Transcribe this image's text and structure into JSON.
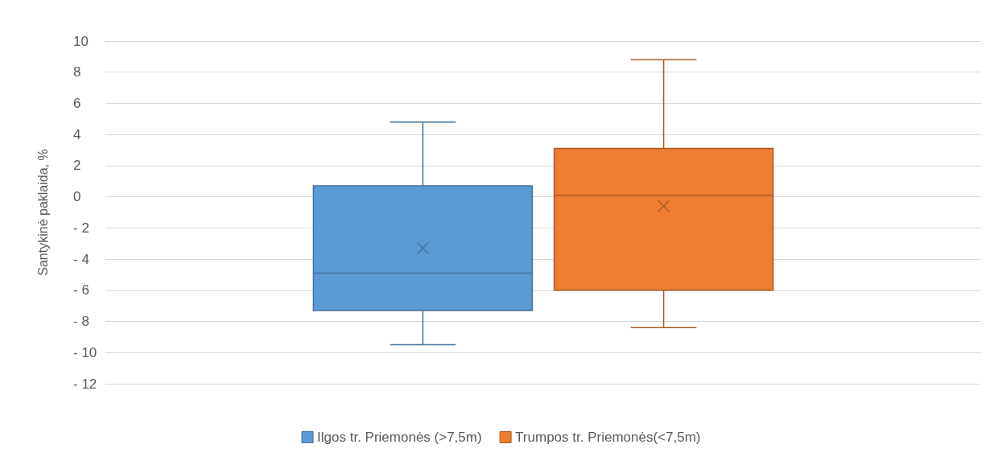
{
  "chart_data": {
    "type": "box",
    "ylabel": "Santykinė paklaida, %",
    "categories": [
      null
    ],
    "series": [
      {
        "name": "Ilgos tr. Priemonės (>7,5m)",
        "color": "#5b9bd5",
        "boxes": [
          {
            "low": -9.5,
            "q1": -7.3,
            "median": -4.9,
            "q3": 0.7,
            "high": 4.8,
            "mean": -3.3
          }
        ]
      },
      {
        "name": "Trumpos tr. Priemonės(<7,5m)",
        "color": "#ed7d31",
        "boxes": [
          {
            "low": -8.4,
            "q1": -6,
            "median": 0.1,
            "q3": 3.1,
            "high": 8.8,
            "mean": -0.6
          }
        ]
      }
    ],
    "ylim": [
      -12,
      10
    ],
    "yticks": [
      {
        "value": -12,
        "label": "- 12"
      },
      {
        "value": -10,
        "label": "- 10"
      },
      {
        "value": -8,
        "label": "- 8"
      },
      {
        "value": -6,
        "label": "- 6"
      },
      {
        "value": -4,
        "label": "- 4"
      },
      {
        "value": -2,
        "label": "- 2"
      },
      0,
      2,
      4,
      6,
      8,
      10
    ],
    "grid": "y",
    "legend": "bottom"
  }
}
